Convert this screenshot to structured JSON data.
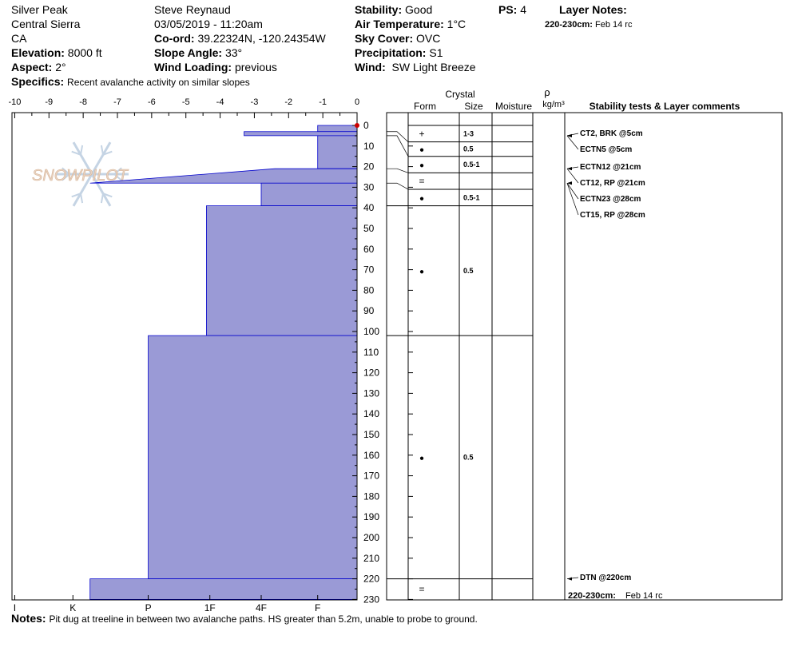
{
  "header": {
    "location": "Silver Peak",
    "range": "Central Sierra",
    "state": "CA",
    "elevation_label": "Elevation:",
    "elevation": "8000 ft",
    "aspect_label": "Aspect:",
    "aspect": "2°",
    "specifics_label": "Specifics:",
    "specifics": "Recent avalanche activity on similar slopes",
    "observer": "Steve Reynaud",
    "datetime": "03/05/2019 - 11:20am",
    "coord_label": "Co-ord:",
    "coord": "39.22324N, -120.24354W",
    "slope_label": "Slope Angle:",
    "slope": "33°",
    "wind_loading_label": "Wind Loading:",
    "wind_loading": "previous",
    "stability_label": "Stability:",
    "stability": "Good",
    "air_temp_label": "Air Temperature:",
    "air_temp": "1°C",
    "sky_label": "Sky Cover:",
    "sky": "OVC",
    "precip_label": "Precipitation:",
    "precip": "S1",
    "wind_label": "Wind:",
    "wind": "SW Light Breeze",
    "ps_label": "PS:",
    "ps": "4",
    "layer_notes_label": "Layer Notes:",
    "layer_note_depth": "220-230cm:",
    "layer_note_text": "Feb 14 rc"
  },
  "notes_label": "Notes:",
  "notes": "Pit dug at treeline in between two avalanche paths. HS greater than 5.2m, unable to probe to ground.",
  "watermark": "SNOWPILOT",
  "columns": {
    "crystal": "Crystal",
    "form": "Form",
    "size": "Size",
    "moisture": "Moisture",
    "rho": "ρ",
    "density_unit": "kg/m³",
    "stability_col": "Stability tests & Layer comments"
  },
  "colors": {
    "hardness_fill": "#9a9ad6",
    "hardness_stroke": "#0000cc",
    "temp_marker": "#cc0000"
  },
  "chart_data": {
    "type": "hardness_profile",
    "temperature_axis": {
      "ticks": [
        "-10",
        "-9",
        "-8",
        "-7",
        "-6",
        "-5",
        "-4",
        "-3",
        "-2",
        "-1",
        "0"
      ],
      "range": [
        -10,
        0
      ]
    },
    "hardness_axis": {
      "ticks": [
        "I",
        "K",
        "P",
        "1F",
        "4F",
        "F"
      ],
      "levels": {
        "I": 10,
        "K": 8.3,
        "P": 6.1,
        "1F": 4.3,
        "4F": 2.8,
        "F": 1.15
      }
    },
    "depth_axis": {
      "range": [
        0,
        230
      ],
      "ticks": [
        0,
        10,
        20,
        30,
        40,
        50,
        60,
        70,
        80,
        90,
        100,
        110,
        120,
        130,
        140,
        150,
        160,
        170,
        180,
        190,
        200,
        210,
        220,
        230
      ]
    },
    "surface_temperature": 0,
    "hardness_layers": [
      {
        "top": 0,
        "bottom": 3,
        "hardness": 1.15
      },
      {
        "top": 3,
        "bottom": 5,
        "hardness": 3.3
      },
      {
        "top": 5,
        "bottom": 21,
        "hardness": 1.15
      },
      {
        "top": 21,
        "bottom": 28,
        "hardness": 7.8,
        "shape": "wedge"
      },
      {
        "top": 28,
        "bottom": 39,
        "hardness": 2.8
      },
      {
        "top": 39,
        "bottom": 102,
        "hardness": 4.4
      },
      {
        "top": 102,
        "bottom": 220,
        "hardness": 6.1
      },
      {
        "top": 220,
        "bottom": 230,
        "hardness": 7.8
      }
    ],
    "crystal_layers": [
      {
        "top": 0,
        "bottom": 8,
        "form": "+",
        "size": "1-3"
      },
      {
        "top": 8,
        "bottom": 15,
        "form": "●",
        "size": "0.5"
      },
      {
        "top": 15,
        "bottom": 23,
        "form": "●",
        "size": "0.5-1"
      },
      {
        "top": 23,
        "bottom": 31,
        "form": "=",
        "size": ""
      },
      {
        "top": 31,
        "bottom": 39,
        "form": "●",
        "size": "0.5-1"
      },
      {
        "top": 39,
        "bottom": 102,
        "form": "●",
        "size": "0.5"
      },
      {
        "top": 102,
        "bottom": 220,
        "form": "●",
        "size": "0.5"
      },
      {
        "top": 220,
        "bottom": 230,
        "form": "=",
        "size": ""
      }
    ],
    "stability_tests": [
      {
        "depth": 5,
        "label": "CT2, BRK @5cm"
      },
      {
        "depth": 5,
        "label": "ECTN5 @5cm"
      },
      {
        "depth": 21,
        "label": "ECTN12 @21cm"
      },
      {
        "depth": 21,
        "label": "CT12, RP @21cm"
      },
      {
        "depth": 28,
        "label": "ECTN23 @28cm"
      },
      {
        "depth": 28,
        "label": "CT15, RP @28cm"
      },
      {
        "depth": 220,
        "label": "DTN @220cm"
      }
    ],
    "bottom_note": {
      "depth": "220-230cm:",
      "text": "Feb 14 rc"
    }
  }
}
